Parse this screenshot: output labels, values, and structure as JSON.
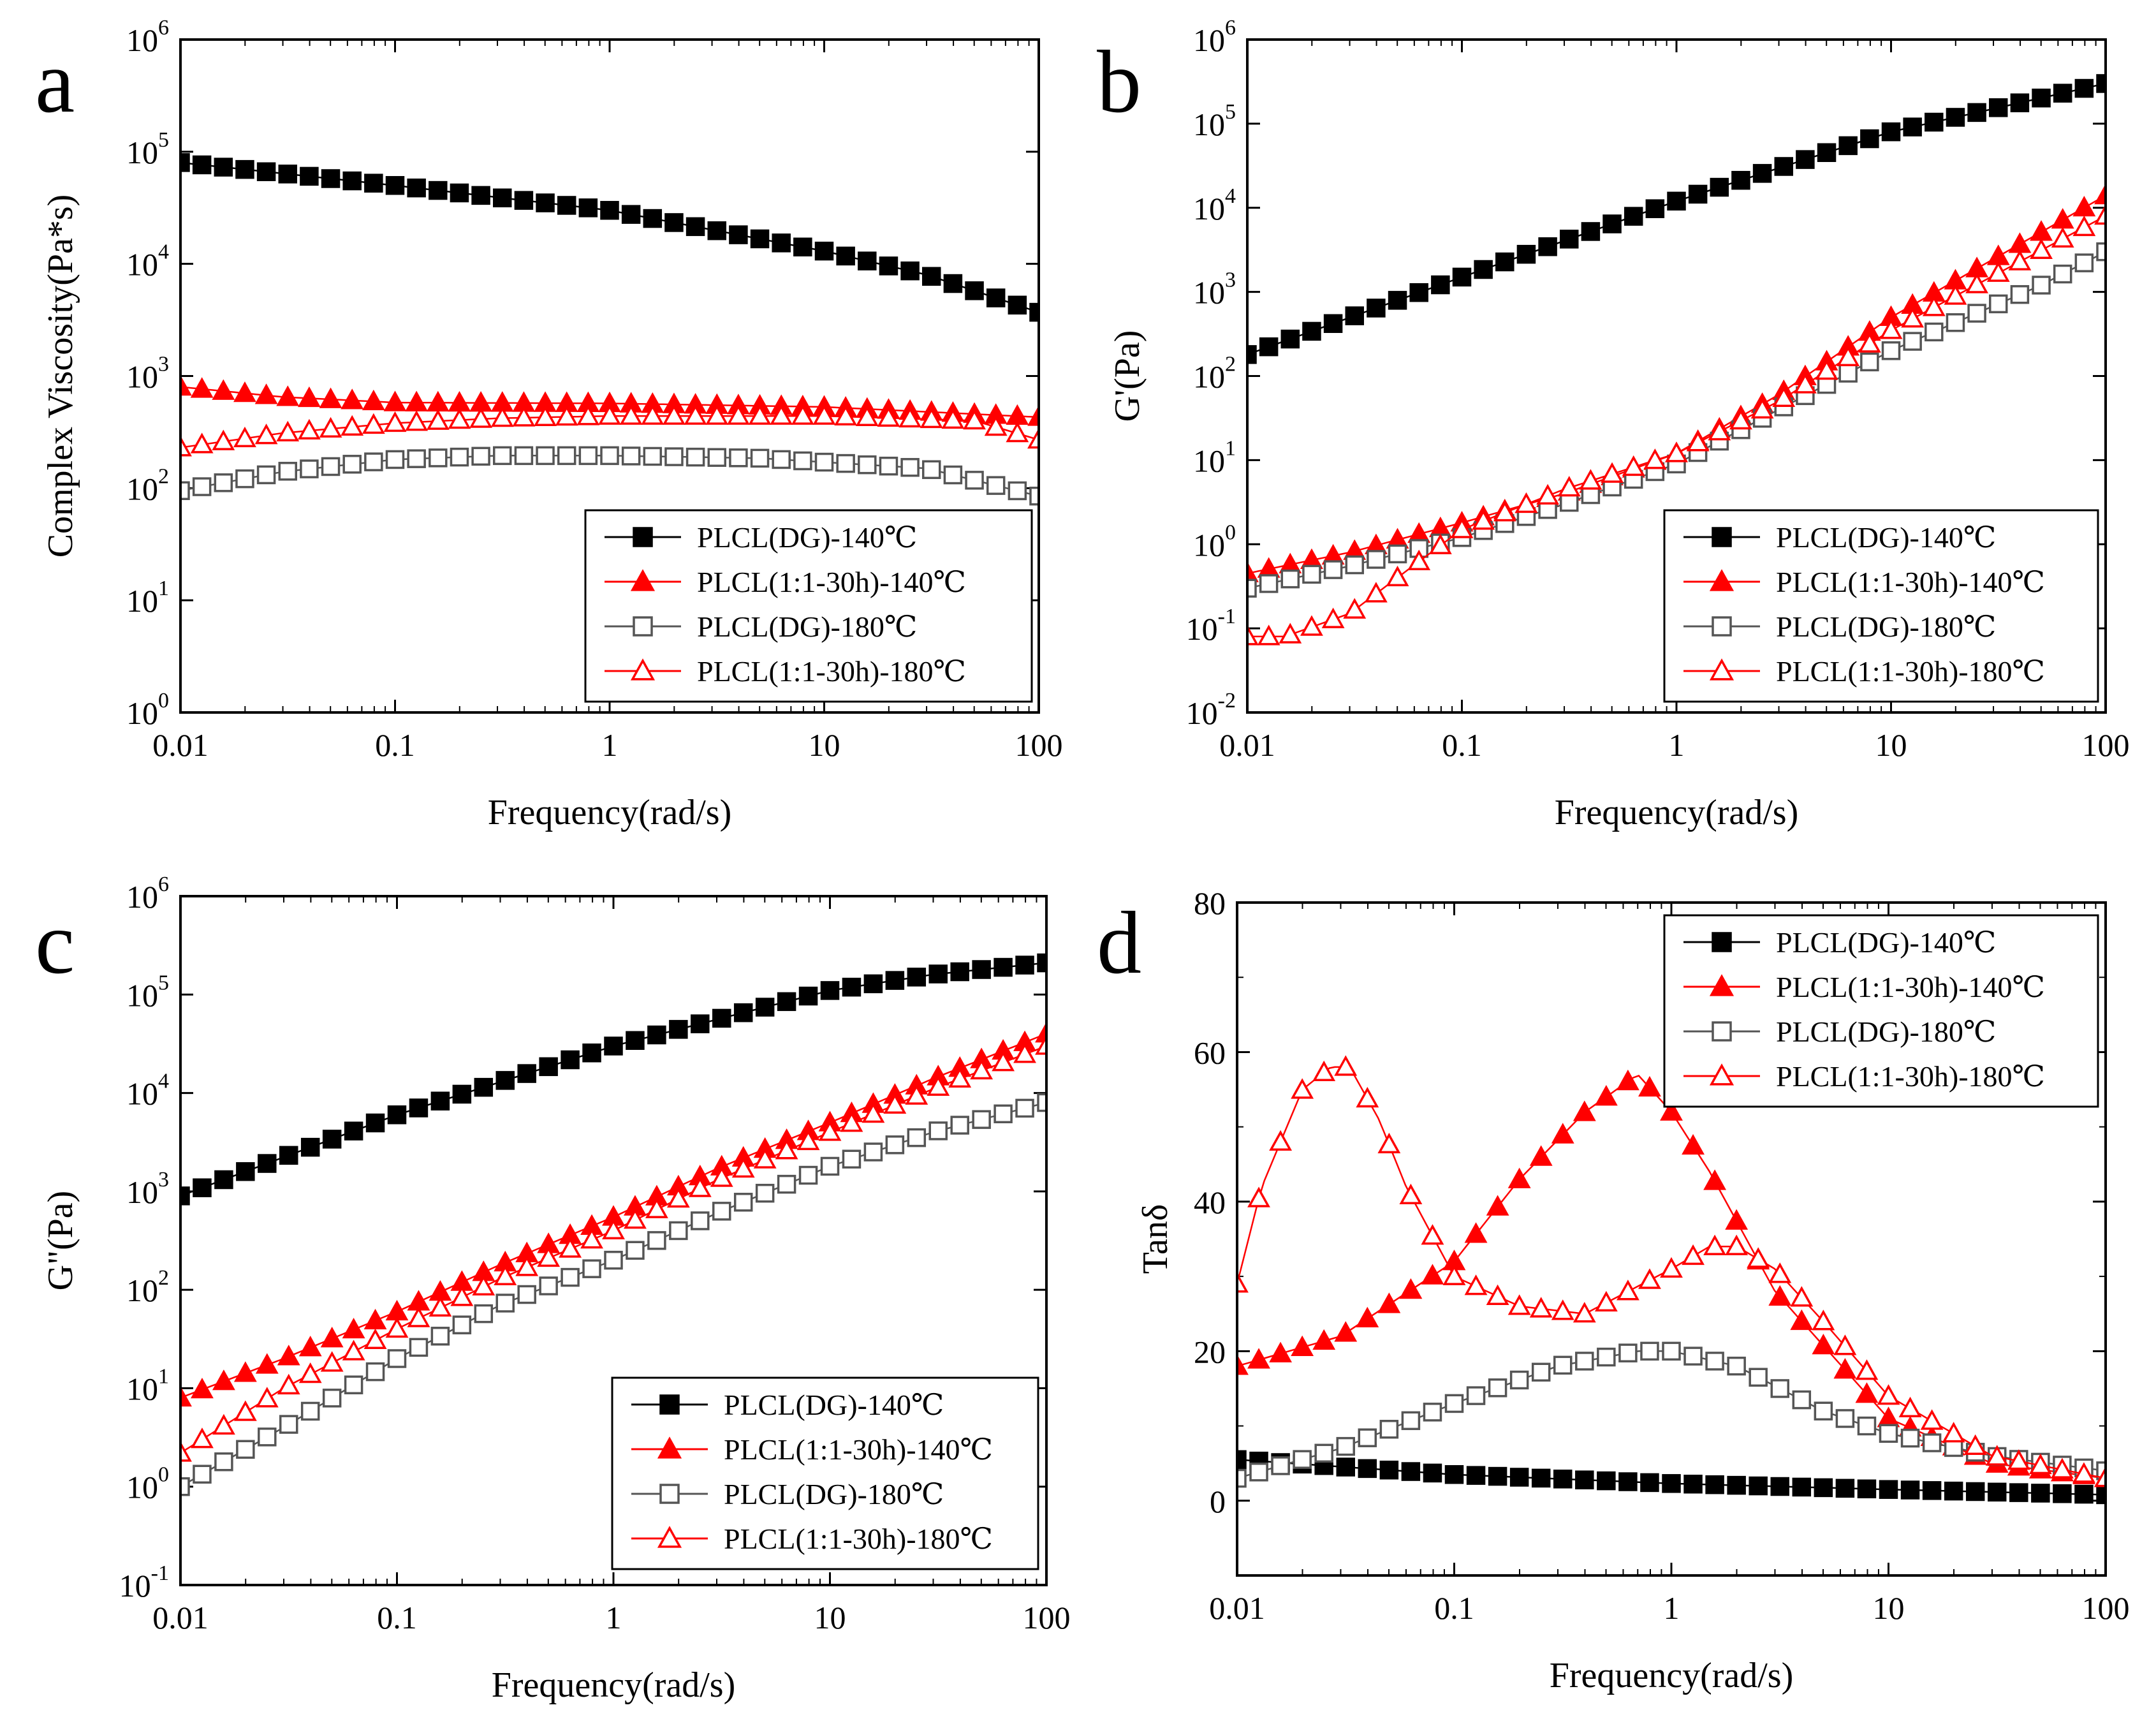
{
  "figure": {
    "series_names": [
      "PLCL(DG)-140℃",
      "PLCL(1:1-30h)-140℃",
      "PLCL(DG)-180℃",
      "PLCL(1:1-30h)-180℃"
    ],
    "series_styles": [
      {
        "color": "#000000",
        "marker": "square",
        "filled": true
      },
      {
        "color": "#ff0000",
        "marker": "triangle",
        "filled": true
      },
      {
        "color": "#555555",
        "marker": "square",
        "filled": false
      },
      {
        "color": "#ff0000",
        "marker": "triangle",
        "filled": false
      }
    ]
  },
  "chart_data": [
    {
      "type": "line",
      "panel_letter": "a",
      "xlabel": "Frequency(rad/s)",
      "ylabel": "Complex Viscosity(Pa*s)",
      "xscale": "log",
      "yscale": "log",
      "xlim": [
        0.01,
        100
      ],
      "ylim": [
        1,
        1000000
      ],
      "xticks": [
        {
          "v": 0.01,
          "label": "0.01"
        },
        {
          "v": 0.1,
          "label": "0.1"
        },
        {
          "v": 1,
          "label": "1"
        },
        {
          "v": 10,
          "label": "10"
        },
        {
          "v": 100,
          "label": "100"
        }
      ],
      "yticks": [
        {
          "v": 1,
          "base": "10",
          "exp": "0"
        },
        {
          "v": 10,
          "base": "10",
          "exp": "1"
        },
        {
          "v": 100,
          "base": "10",
          "exp": "2"
        },
        {
          "v": 1000,
          "base": "10",
          "exp": "3"
        },
        {
          "v": 10000,
          "base": "10",
          "exp": "4"
        },
        {
          "v": 100000,
          "base": "10",
          "exp": "5"
        },
        {
          "v": 1000000,
          "base": "10",
          "exp": "6"
        }
      ],
      "legend_position": "lower-right",
      "series": [
        {
          "name": "PLCL(DG)-140℃",
          "x": [
            0.01,
            0.1,
            1,
            10,
            30,
            100
          ],
          "y": [
            80000,
            50000,
            30000,
            13000,
            8000,
            3700
          ]
        },
        {
          "name": "PLCL(1:1-30h)-140℃",
          "x": [
            0.01,
            0.03,
            0.1,
            1,
            10,
            100
          ],
          "y": [
            800,
            650,
            580,
            570,
            530,
            430
          ]
        },
        {
          "name": "PLCL(DG)-180℃",
          "x": [
            0.01,
            0.03,
            0.1,
            0.3,
            1,
            5,
            30,
            100
          ],
          "y": [
            95,
            140,
            180,
            195,
            195,
            185,
            150,
            85
          ]
        },
        {
          "name": "PLCL(1:1-30h)-180℃",
          "x": [
            0.01,
            0.03,
            0.1,
            0.3,
            1,
            10,
            50,
            100
          ],
          "y": [
            230,
            310,
            380,
            420,
            440,
            440,
            400,
            270
          ]
        }
      ]
    },
    {
      "type": "line",
      "panel_letter": "b",
      "xlabel": "Frequency(rad/s)",
      "ylabel": "G'(Pa)",
      "xscale": "log",
      "yscale": "log",
      "xlim": [
        0.01,
        100
      ],
      "ylim": [
        0.01,
        1000000
      ],
      "xticks": [
        {
          "v": 0.01,
          "label": "0.01"
        },
        {
          "v": 0.1,
          "label": "0.1"
        },
        {
          "v": 1,
          "label": "1"
        },
        {
          "v": 10,
          "label": "10"
        },
        {
          "v": 100,
          "label": "100"
        }
      ],
      "yticks": [
        {
          "v": 0.01,
          "base": "10",
          "exp": "-2"
        },
        {
          "v": 0.1,
          "base": "10",
          "exp": "-1"
        },
        {
          "v": 1,
          "base": "10",
          "exp": "0"
        },
        {
          "v": 10,
          "base": "10",
          "exp": "1"
        },
        {
          "v": 100,
          "base": "10",
          "exp": "2"
        },
        {
          "v": 1000,
          "base": "10",
          "exp": "3"
        },
        {
          "v": 10000,
          "base": "10",
          "exp": "4"
        },
        {
          "v": 100000,
          "base": "10",
          "exp": "5"
        },
        {
          "v": 1000000,
          "base": "10",
          "exp": "6"
        }
      ],
      "legend_position": "lower-right",
      "series": [
        {
          "name": "PLCL(DG)-140℃",
          "x": [
            0.01,
            0.1,
            1,
            10,
            100
          ],
          "y": [
            180,
            1500,
            12000,
            80000,
            300000
          ]
        },
        {
          "name": "PLCL(1:1-30h)-140℃",
          "x": [
            0.01,
            0.03,
            0.1,
            0.3,
            1,
            3,
            10,
            100
          ],
          "y": [
            0.45,
            0.8,
            1.8,
            4,
            12,
            60,
            500,
            14000
          ]
        },
        {
          "name": "PLCL(DG)-180℃",
          "x": [
            0.01,
            0.03,
            0.1,
            0.3,
            1,
            3,
            10,
            50,
            100
          ],
          "y": [
            0.3,
            0.55,
            1.2,
            3,
            9,
            40,
            200,
            1200,
            3000
          ]
        },
        {
          "name": "PLCL(1:1-30h)-180℃",
          "x": [
            0.01,
            0.015,
            0.03,
            0.05,
            0.1,
            0.3,
            1,
            3,
            10,
            100
          ],
          "y": [
            0.08,
            0.08,
            0.15,
            0.4,
            1.5,
            4.5,
            12,
            50,
            350,
            8000
          ]
        }
      ]
    },
    {
      "type": "line",
      "panel_letter": "c",
      "xlabel": "Frequency(rad/s)",
      "ylabel": "G\"(Pa)",
      "xscale": "log",
      "yscale": "log",
      "xlim": [
        0.01,
        100
      ],
      "ylim": [
        0.1,
        1000000
      ],
      "xticks": [
        {
          "v": 0.01,
          "label": "0.01"
        },
        {
          "v": 0.1,
          "label": "0.1"
        },
        {
          "v": 1,
          "label": "1"
        },
        {
          "v": 10,
          "label": "10"
        },
        {
          "v": 100,
          "label": "100"
        }
      ],
      "yticks": [
        {
          "v": 0.1,
          "base": "10",
          "exp": "-1"
        },
        {
          "v": 1,
          "base": "10",
          "exp": "0"
        },
        {
          "v": 10,
          "base": "10",
          "exp": "1"
        },
        {
          "v": 100,
          "base": "10",
          "exp": "2"
        },
        {
          "v": 1000,
          "base": "10",
          "exp": "3"
        },
        {
          "v": 10000,
          "base": "10",
          "exp": "4"
        },
        {
          "v": 100000,
          "base": "10",
          "exp": "5"
        },
        {
          "v": 1000000,
          "base": "10",
          "exp": "6"
        }
      ],
      "legend_position": "lower-right",
      "series": [
        {
          "name": "PLCL(DG)-140℃",
          "x": [
            0.01,
            0.1,
            1,
            10,
            30,
            100
          ],
          "y": [
            900,
            6000,
            30000,
            110000,
            160000,
            210000
          ]
        },
        {
          "name": "PLCL(1:1-30h)-140℃",
          "x": [
            0.01,
            0.03,
            0.1,
            0.3,
            1,
            3,
            10,
            30,
            100
          ],
          "y": [
            8,
            20,
            60,
            180,
            550,
            1700,
            5000,
            14000,
            40000
          ]
        },
        {
          "name": "PLCL(DG)-180℃",
          "x": [
            0.01,
            0.03,
            0.1,
            0.3,
            1,
            3,
            10,
            30,
            100
          ],
          "y": [
            1,
            4,
            20,
            70,
            200,
            600,
            1800,
            4000,
            8000
          ]
        },
        {
          "name": "PLCL(1:1-30h)-180℃",
          "x": [
            0.01,
            0.03,
            0.1,
            0.3,
            1,
            3,
            10,
            30,
            100
          ],
          "y": [
            2.2,
            10,
            40,
            130,
            400,
            1300,
            4000,
            11000,
            30000
          ]
        }
      ]
    },
    {
      "type": "line",
      "panel_letter": "d",
      "xlabel": "Frequency(rad/s)",
      "ylabel": "Tanδ",
      "xscale": "log",
      "yscale": "linear",
      "xlim": [
        0.01,
        100
      ],
      "ylim": [
        -10,
        80
      ],
      "xticks": [
        {
          "v": 0.01,
          "label": "0.01"
        },
        {
          "v": 0.1,
          "label": "0.1"
        },
        {
          "v": 1,
          "label": "1"
        },
        {
          "v": 10,
          "label": "10"
        },
        {
          "v": 100,
          "label": "100"
        }
      ],
      "yticks": [
        {
          "v": 0,
          "label": "0"
        },
        {
          "v": 20,
          "label": "20"
        },
        {
          "v": 40,
          "label": "40"
        },
        {
          "v": 60,
          "label": "60"
        },
        {
          "v": 80,
          "label": "80"
        }
      ],
      "legend_position": "top-right",
      "series": [
        {
          "name": "PLCL(DG)-140℃",
          "x": [
            0.01,
            0.1,
            1,
            10,
            100
          ],
          "y": [
            5.5,
            3.5,
            2.3,
            1.5,
            0.8
          ]
        },
        {
          "name": "PLCL(1:1-30h)-140℃",
          "x": [
            0.01,
            0.03,
            0.1,
            0.2,
            0.4,
            0.7,
            1,
            1.5,
            3,
            10,
            30,
            100
          ],
          "y": [
            18,
            22,
            32,
            43,
            52,
            57,
            52,
            44,
            28,
            11,
            5,
            3
          ]
        },
        {
          "name": "PLCL(DG)-180℃",
          "x": [
            0.01,
            0.03,
            0.1,
            0.3,
            0.7,
            1,
            2,
            5,
            10,
            30,
            100
          ],
          "y": [
            3,
            7,
            13,
            18,
            20,
            20,
            18,
            12,
            9,
            6,
            4
          ]
        },
        {
          "name": "PLCL(1:1-30h)-180℃",
          "x": [
            0.01,
            0.013,
            0.02,
            0.027,
            0.033,
            0.045,
            0.06,
            0.1,
            0.2,
            0.4,
            1,
            1.5,
            2,
            3,
            5,
            10,
            30,
            100
          ],
          "y": [
            29,
            42,
            55,
            58,
            58,
            51,
            42,
            30,
            26,
            25,
            31,
            34,
            34,
            31,
            24,
            14,
            6,
            3
          ]
        }
      ]
    }
  ]
}
